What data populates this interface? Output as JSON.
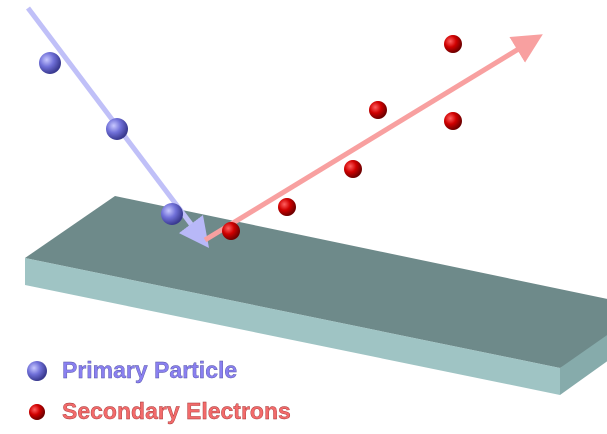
{
  "legend": {
    "items": [
      {
        "label": "Primary Particle"
      },
      {
        "label": "Secondary Electrons"
      }
    ]
  }
}
